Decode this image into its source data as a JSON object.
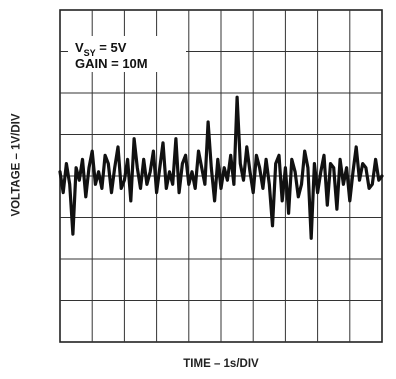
{
  "chart_data": {
    "type": "line",
    "xlabel": "TIME – 1s/DIV",
    "ylabel": "VOLTAGE – 1V/DIV",
    "divisions": {
      "x": 10,
      "y": 8
    },
    "grid": true,
    "annotation": {
      "vsy_prefix": "V",
      "vsy_sub": "SY",
      "vsy_value": " = 5V",
      "gain": "GAIN = 10M"
    },
    "series": [
      {
        "x_unit": "s",
        "y_unit": "V",
        "x": [
          0,
          0.1,
          0.2,
          0.3,
          0.4,
          0.5,
          0.6,
          0.7,
          0.8,
          0.9,
          1.0,
          1.1,
          1.2,
          1.3,
          1.4,
          1.5,
          1.6,
          1.7,
          1.8,
          1.9,
          2.0,
          2.1,
          2.2,
          2.3,
          2.4,
          2.5,
          2.6,
          2.7,
          2.8,
          2.9,
          3.0,
          3.1,
          3.2,
          3.3,
          3.4,
          3.5,
          3.6,
          3.7,
          3.8,
          3.9,
          4.0,
          4.1,
          4.2,
          4.3,
          4.4,
          4.5,
          4.6,
          4.7,
          4.8,
          4.9,
          5.0,
          5.1,
          5.2,
          5.3,
          5.4,
          5.5,
          5.6,
          5.7,
          5.8,
          5.9,
          6.0,
          6.1,
          6.2,
          6.3,
          6.4,
          6.5,
          6.6,
          6.7,
          6.8,
          6.9,
          7.0,
          7.1,
          7.2,
          7.3,
          7.4,
          7.5,
          7.6,
          7.7,
          7.8,
          7.9,
          8.0,
          8.1,
          8.2,
          8.3,
          8.4,
          8.5,
          8.6,
          8.7,
          8.8,
          8.9,
          9.0,
          9.1,
          9.2,
          9.3,
          9.4,
          9.5,
          9.6,
          9.7,
          9.8,
          9.9,
          10.0
        ],
        "y": [
          0.1,
          -0.4,
          0.3,
          -0.2,
          -1.4,
          0.2,
          -0.1,
          0.4,
          -0.5,
          0.2,
          0.6,
          -0.2,
          0.1,
          -0.3,
          0.5,
          0.3,
          -0.4,
          0.2,
          0.7,
          -0.3,
          -0.1,
          0.4,
          -0.6,
          0.9,
          0.2,
          -0.3,
          0.4,
          -0.2,
          0.1,
          0.6,
          -0.4,
          0.2,
          0.8,
          -0.3,
          0.1,
          -0.2,
          0.9,
          -0.4,
          0.3,
          0.5,
          -0.2,
          0.1,
          -0.3,
          0.6,
          0.2,
          -0.2,
          1.3,
          0.2,
          -0.6,
          0.4,
          -0.3,
          0.2,
          -0.1,
          0.5,
          -0.2,
          1.9,
          0.3,
          -0.1,
          0.7,
          0.1,
          -0.4,
          0.5,
          0.2,
          -0.3,
          0.4,
          -0.2,
          -1.2,
          0.3,
          0.5,
          -0.6,
          0.2,
          -0.9,
          0.4,
          0.1,
          -0.5,
          -0.2,
          0.6,
          0.2,
          -1.5,
          0.3,
          -0.4,
          0.1,
          0.5,
          -0.7,
          0.3,
          0.2,
          -0.8,
          0.4,
          -0.2,
          0.2,
          -0.6,
          0.1,
          0.7,
          -0.1,
          0.3,
          0.2,
          -0.3,
          -0.2,
          0.4,
          -0.1,
          0.0
        ]
      }
    ]
  }
}
